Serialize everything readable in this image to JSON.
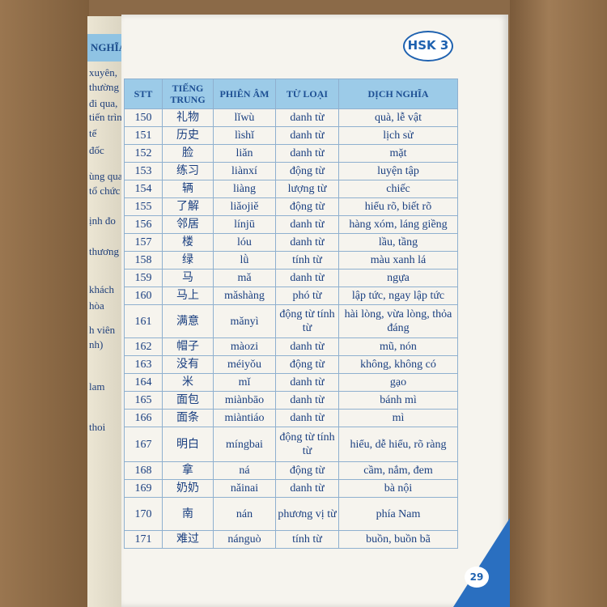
{
  "left_page": {
    "header": "NGHĨA",
    "lines": [
      "xuyên,",
      "thường",
      "đi qua,",
      "tiến trình",
      "tế",
      "đốc",
      "ùng qua",
      "tổ chức",
      "ịnh đo",
      "thương",
      "khách",
      "hòa",
      "h viên",
      "nh)",
      "lam",
      "thoi"
    ]
  },
  "badge": "HSK 3",
  "page_number": "29",
  "table": {
    "headers": [
      "STT",
      "TIẾNG TRUNG",
      "PHIÊN ÂM",
      "TỪ LOẠI",
      "DỊCH NGHĨA"
    ],
    "rows": [
      [
        "150",
        "礼物",
        "lǐwù",
        "danh từ",
        "quà, lễ vật"
      ],
      [
        "151",
        "历史",
        "lìshǐ",
        "danh từ",
        "lịch sử"
      ],
      [
        "152",
        "脸",
        "liǎn",
        "danh từ",
        "mặt"
      ],
      [
        "153",
        "练习",
        "liànxí",
        "động từ",
        "luyện tập"
      ],
      [
        "154",
        "辆",
        "liàng",
        "lượng từ",
        "chiếc"
      ],
      [
        "155",
        "了解",
        "liǎojiě",
        "động từ",
        "hiểu rõ, biết rõ"
      ],
      [
        "156",
        "邻居",
        "línjū",
        "danh từ",
        "hàng xóm, láng giềng"
      ],
      [
        "157",
        "楼",
        "lóu",
        "danh từ",
        "lầu, tầng"
      ],
      [
        "158",
        "绿",
        "lǜ",
        "tính từ",
        "màu xanh lá"
      ],
      [
        "159",
        "马",
        "mǎ",
        "danh từ",
        "ngựa"
      ],
      [
        "160",
        "马上",
        "mǎshàng",
        "phó từ",
        "lập tức, ngay lập tức"
      ],
      [
        "161",
        "满意",
        "mǎnyì",
        "động từ tính từ",
        "hài lòng, vừa lòng, thỏa đáng"
      ],
      [
        "162",
        "帽子",
        "màozi",
        "danh từ",
        "mũ, nón"
      ],
      [
        "163",
        "没有",
        "méiyǒu",
        "động từ",
        "không, không có"
      ],
      [
        "164",
        "米",
        "mǐ",
        "danh từ",
        "gạo"
      ],
      [
        "165",
        "面包",
        "miànbāo",
        "danh từ",
        "bánh mì"
      ],
      [
        "166",
        "面条",
        "miàntiáo",
        "danh từ",
        "mì"
      ],
      [
        "167",
        "明白",
        "míngbai",
        "động từ tính từ",
        "hiểu, dễ hiểu, rõ ràng"
      ],
      [
        "168",
        "拿",
        "ná",
        "động từ",
        "cầm, nắm, đem"
      ],
      [
        "169",
        "奶奶",
        "nǎinai",
        "danh từ",
        "bà nội"
      ],
      [
        "170",
        "南",
        "nán",
        "phương vị từ",
        "phía Nam"
      ],
      [
        "171",
        "难过",
        "nánguò",
        "tính từ",
        "buồn, buồn bã"
      ]
    ]
  }
}
